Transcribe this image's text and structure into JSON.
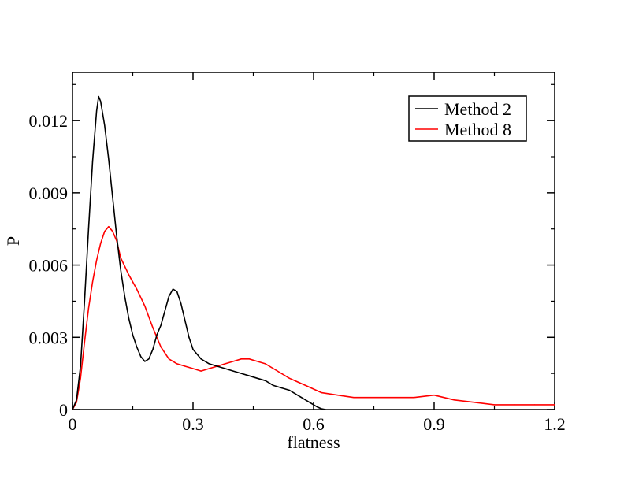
{
  "chart_data": {
    "type": "line",
    "xlabel": "flatness",
    "ylabel": "P",
    "xlim": [
      0,
      1.2
    ],
    "ylim": [
      0,
      0.014
    ],
    "x_ticks": [
      0,
      0.3,
      0.6,
      0.9,
      1.2
    ],
    "x_tick_labels": [
      "0",
      "0.3",
      "0.6",
      "0.9",
      "1.2"
    ],
    "y_ticks": [
      0,
      0.003,
      0.006,
      0.009,
      0.012
    ],
    "y_tick_labels": [
      "0",
      "0.003",
      "0.006",
      "0.009",
      "0.012"
    ],
    "grid": false,
    "legend_position": "top-right",
    "series": [
      {
        "name": "Method 2",
        "color": "#000000",
        "x": [
          0,
          0.01,
          0.02,
          0.03,
          0.04,
          0.05,
          0.06,
          0.065,
          0.07,
          0.08,
          0.09,
          0.1,
          0.11,
          0.12,
          0.13,
          0.14,
          0.15,
          0.16,
          0.17,
          0.18,
          0.19,
          0.2,
          0.21,
          0.22,
          0.23,
          0.24,
          0.25,
          0.26,
          0.27,
          0.28,
          0.29,
          0.3,
          0.32,
          0.34,
          0.36,
          0.38,
          0.4,
          0.42,
          0.44,
          0.46,
          0.48,
          0.5,
          0.52,
          0.54,
          0.56,
          0.58,
          0.6,
          0.61,
          0.62,
          0.63
        ],
        "y": [
          0,
          0.0004,
          0.0018,
          0.0045,
          0.0075,
          0.0103,
          0.0124,
          0.013,
          0.0128,
          0.0118,
          0.0104,
          0.0088,
          0.0072,
          0.0058,
          0.0047,
          0.0038,
          0.0031,
          0.0026,
          0.0022,
          0.002,
          0.0021,
          0.0025,
          0.0031,
          0.0035,
          0.0041,
          0.0047,
          0.005,
          0.0049,
          0.0044,
          0.0037,
          0.003,
          0.0025,
          0.0021,
          0.0019,
          0.0018,
          0.0017,
          0.0016,
          0.0015,
          0.0014,
          0.0013,
          0.0012,
          0.001,
          0.0009,
          0.0008,
          0.0006,
          0.0004,
          0.0002,
          0.0001,
          3e-05,
          0
        ]
      },
      {
        "name": "Method 8",
        "color": "#ff0000",
        "x": [
          0,
          0.01,
          0.02,
          0.03,
          0.04,
          0.05,
          0.06,
          0.07,
          0.08,
          0.09,
          0.1,
          0.11,
          0.12,
          0.14,
          0.16,
          0.18,
          0.2,
          0.22,
          0.24,
          0.26,
          0.28,
          0.3,
          0.32,
          0.34,
          0.36,
          0.38,
          0.4,
          0.42,
          0.44,
          0.46,
          0.48,
          0.5,
          0.54,
          0.58,
          0.62,
          0.66,
          0.7,
          0.75,
          0.8,
          0.85,
          0.9,
          0.95,
          1.0,
          1.05,
          1.1,
          1.15,
          1.2
        ],
        "y": [
          0,
          0.0003,
          0.0013,
          0.0028,
          0.0042,
          0.0053,
          0.0062,
          0.0069,
          0.0074,
          0.0076,
          0.0074,
          0.007,
          0.0063,
          0.0056,
          0.005,
          0.0043,
          0.0034,
          0.0026,
          0.0021,
          0.0019,
          0.0018,
          0.0017,
          0.0016,
          0.0017,
          0.0018,
          0.0019,
          0.002,
          0.0021,
          0.0021,
          0.002,
          0.0019,
          0.0017,
          0.0013,
          0.001,
          0.0007,
          0.0006,
          0.0005,
          0.0005,
          0.0005,
          0.0005,
          0.0006,
          0.0004,
          0.0003,
          0.0002,
          0.0002,
          0.0002,
          0.0002
        ]
      }
    ]
  }
}
